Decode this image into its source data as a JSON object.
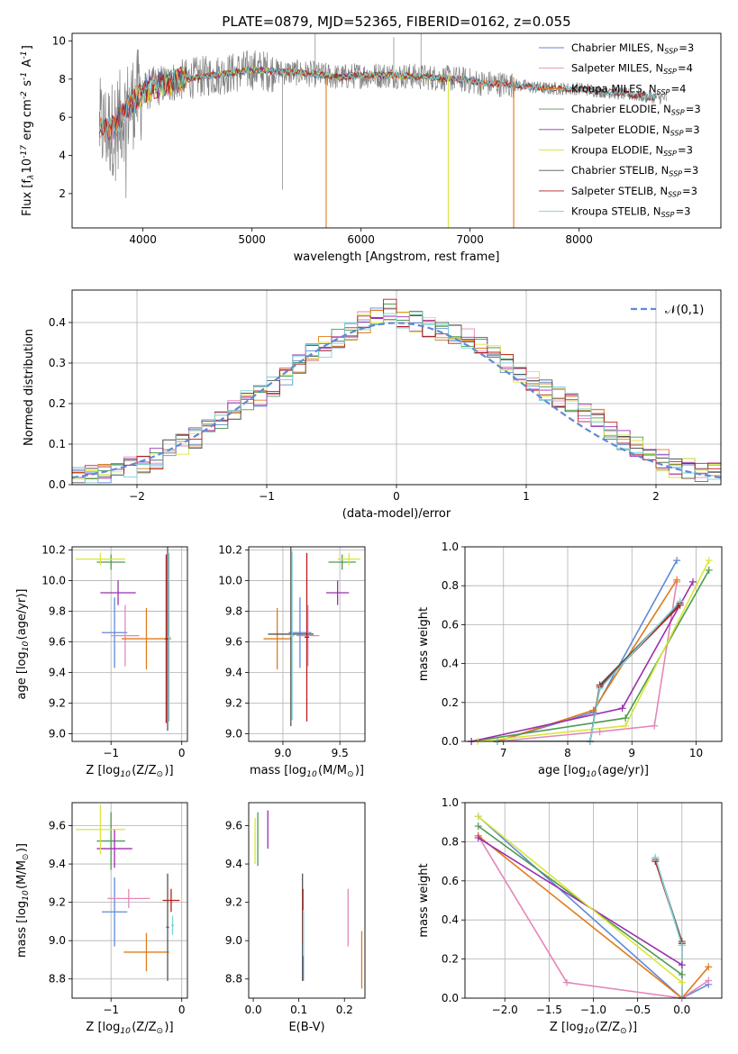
{
  "figure": {
    "title": "PLATE=0879, MJD=52365, FIBERID=0162, z=0.055"
  },
  "colors": {
    "Chabrier MILES": "#5f8ad8",
    "Salpeter MILES": "#e387b9",
    "Kroupa MILES": "#e07b1b",
    "Chabrier ELODIE": "#4e9a4e",
    "Salpeter ELODIE": "#9b2fae",
    "Kroupa ELODIE": "#d9e63b",
    "Chabrier STELIB": "#555555",
    "Salpeter STELIB": "#b71c1c",
    "Kroupa STELIB": "#7ad3d6",
    "data_spectrum": "#808080",
    "normal_curve": "#5f8ad8"
  },
  "chart_data": [
    {
      "id": "spectrum",
      "type": "line",
      "title": "PLATE=0879, MJD=52365, FIBERID=0162, z=0.055",
      "xlabel": "wavelength [Angstrom, rest frame]",
      "ylabel": "Flux [f$_\\lambda$10$^{-17}$ erg cm$^{-2}$ s$^{-1}$ A$^{-1}$]",
      "xlim": [
        3350,
        9300
      ],
      "ylim": [
        0.2,
        10.4
      ],
      "xticks": [
        "4000",
        "5000",
        "6000",
        "7000",
        "8000"
      ],
      "yticks": [
        "2",
        "4",
        "6",
        "8",
        "10"
      ],
      "legend_position": "upper-right",
      "legend": [
        "Chabrier MILES, N$_{SSP}$=3",
        "Salpeter MILES, N$_{SSP}$=4",
        "Kroupa MILES, N$_{SSP}$=4",
        "Chabrier ELODIE, N$_{SSP}$=3",
        "Salpeter ELODIE, N$_{SSP}$=3",
        "Kroupa ELODIE, N$_{SSP}$=3",
        "Chabrier STELIB, N$_{SSP}$=3",
        "Salpeter STELIB, N$_{SSP}$=3",
        "Kroupa STELIB, N$_{SSP}$=3"
      ],
      "model_continuum": {
        "x": [
          3600,
          3700,
          3800,
          3900,
          4000,
          4100,
          4300,
          4500,
          4800,
          5000,
          5200,
          5500,
          5800,
          6000,
          6300,
          6600,
          6900,
          7100,
          7400,
          7700,
          8000,
          8300,
          8600,
          8800
        ],
        "y": [
          5.5,
          5.3,
          6.0,
          6.8,
          7.3,
          7.6,
          7.9,
          8.1,
          8.3,
          8.5,
          8.4,
          8.3,
          8.1,
          8.2,
          8.2,
          8.1,
          8.0,
          7.8,
          7.7,
          7.5,
          7.5,
          7.3,
          7.1,
          7.0
        ]
      }
    },
    {
      "id": "residuals",
      "type": "histogram",
      "xlabel": "(data-model)/error",
      "ylabel": "Normed distribution",
      "xlim": [
        -2.5,
        2.5
      ],
      "ylim": [
        0.0,
        0.48
      ],
      "xticks": [
        "−2",
        "−1",
        "0",
        "1",
        "2"
      ],
      "yticks": [
        "0.0",
        "0.1",
        "0.2",
        "0.3",
        "0.4"
      ],
      "grid": true,
      "legend_position": "upper-right",
      "legend": [
        "$\\mathcal{N}(0,1)$"
      ],
      "bin_edges": [
        -2.5,
        -2.4,
        -2.3,
        -2.2,
        -2.1,
        -2.0,
        -1.9,
        -1.8,
        -1.7,
        -1.6,
        -1.5,
        -1.4,
        -1.3,
        -1.2,
        -1.1,
        -1.0,
        -0.9,
        -0.8,
        -0.7,
        -0.6,
        -0.5,
        -0.4,
        -0.3,
        -0.2,
        -0.1,
        0.0,
        0.1,
        0.2,
        0.3,
        0.4,
        0.5,
        0.6,
        0.7,
        0.8,
        0.9,
        1.0,
        1.1,
        1.2,
        1.3,
        1.4,
        1.5,
        1.6,
        1.7,
        1.8,
        1.9,
        2.0,
        2.1,
        2.2,
        2.3,
        2.4,
        2.5
      ],
      "mean_heights": [
        0.02,
        0.025,
        0.03,
        0.035,
        0.045,
        0.055,
        0.065,
        0.085,
        0.1,
        0.115,
        0.14,
        0.165,
        0.185,
        0.205,
        0.22,
        0.245,
        0.27,
        0.3,
        0.32,
        0.34,
        0.36,
        0.38,
        0.4,
        0.41,
        0.43,
        0.41,
        0.4,
        0.39,
        0.38,
        0.37,
        0.36,
        0.34,
        0.32,
        0.3,
        0.28,
        0.26,
        0.235,
        0.215,
        0.2,
        0.175,
        0.16,
        0.135,
        0.11,
        0.09,
        0.075,
        0.06,
        0.045,
        0.04,
        0.035,
        0.03
      ],
      "series": [
        {
          "name": "Chabrier MILES"
        },
        {
          "name": "Salpeter MILES"
        },
        {
          "name": "Kroupa MILES"
        },
        {
          "name": "Chabrier ELODIE"
        },
        {
          "name": "Salpeter ELODIE"
        },
        {
          "name": "Kroupa ELODIE"
        },
        {
          "name": "Chabrier STELIB"
        },
        {
          "name": "Salpeter STELIB"
        },
        {
          "name": "Kroupa STELIB"
        }
      ]
    },
    {
      "id": "z_age",
      "type": "errorbar",
      "xlabel": "Z [log$_{10}$(Z/Z$_\\odot$)]",
      "ylabel": "age  [log$_{10}$(age/yr)]",
      "xlim": [
        -1.55,
        0.08
      ],
      "ylim": [
        8.95,
        10.22
      ],
      "xticks": [
        "−1",
        "0"
      ],
      "yticks": [
        "9.0",
        "9.2",
        "9.4",
        "9.6",
        "9.8",
        "10.0",
        "10.2"
      ],
      "grid": true,
      "points": [
        {
          "series": "Chabrier MILES",
          "x": -0.95,
          "y": 9.66,
          "xerr": 0.18,
          "yerr": 0.23
        },
        {
          "series": "Salpeter MILES",
          "x": -0.8,
          "y": 9.64,
          "xerr": 0.2,
          "yerr": 0.2
        },
        {
          "series": "Kroupa MILES",
          "x": -0.5,
          "y": 9.62,
          "xerr": 0.35,
          "yerr": 0.2
        },
        {
          "series": "Chabrier ELODIE",
          "x": -1.0,
          "y": 10.12,
          "xerr": 0.2,
          "yerr": 0.05
        },
        {
          "series": "Salpeter ELODIE",
          "x": -0.9,
          "y": 9.92,
          "xerr": 0.25,
          "yerr": 0.08
        },
        {
          "series": "Kroupa ELODIE",
          "x": -1.15,
          "y": 10.14,
          "xerr": 0.35,
          "yerr": 0.04
        },
        {
          "series": "Chabrier STELIB",
          "x": -0.2,
          "y": 9.62,
          "xerr": 0.02,
          "yerr": 0.6
        },
        {
          "series": "Salpeter STELIB",
          "x": -0.22,
          "y": 9.62,
          "xerr": 0.02,
          "yerr": 0.55
        },
        {
          "series": "Kroupa STELIB",
          "x": -0.18,
          "y": 9.63,
          "xerr": 0.02,
          "yerr": 0.55
        }
      ]
    },
    {
      "id": "mass_age",
      "type": "errorbar",
      "xlabel": "mass [log$_{10}$(M/M$_\\odot$)]",
      "ylabel": "",
      "xlim": [
        8.7,
        9.72
      ],
      "ylim": [
        8.95,
        10.22
      ],
      "xticks": [
        "9.0",
        "9.5"
      ],
      "yticks": [
        "9.0",
        "9.2",
        "9.4",
        "9.6",
        "9.8",
        "10.0",
        "10.2"
      ],
      "grid": true,
      "points": [
        {
          "series": "Chabrier MILES",
          "x": 9.15,
          "y": 9.66,
          "xerr": 0.1,
          "yerr": 0.23
        },
        {
          "series": "Salpeter MILES",
          "x": 9.22,
          "y": 9.64,
          "xerr": 0.1,
          "yerr": 0.2
        },
        {
          "series": "Kroupa MILES",
          "x": 8.95,
          "y": 9.62,
          "xerr": 0.12,
          "yerr": 0.2
        },
        {
          "series": "Chabrier ELODIE",
          "x": 9.52,
          "y": 10.12,
          "xerr": 0.12,
          "yerr": 0.05
        },
        {
          "series": "Salpeter ELODIE",
          "x": 9.48,
          "y": 9.92,
          "xerr": 0.1,
          "yerr": 0.08
        },
        {
          "series": "Kroupa ELODIE",
          "x": 9.58,
          "y": 10.14,
          "xerr": 0.1,
          "yerr": 0.04
        },
        {
          "series": "Chabrier STELIB",
          "x": 9.07,
          "y": 9.65,
          "xerr": 0.2,
          "yerr": 0.6
        },
        {
          "series": "Salpeter STELIB",
          "x": 9.21,
          "y": 9.63,
          "xerr": 0.02,
          "yerr": 0.55
        },
        {
          "series": "Kroupa STELIB",
          "x": 9.08,
          "y": 9.64,
          "xerr": 0.02,
          "yerr": 0.55
        }
      ]
    },
    {
      "id": "age_weight",
      "type": "line",
      "xlabel": "age  [log$_{10}$(age/yr)]",
      "ylabel": "mass weight",
      "xlim": [
        6.4,
        10.4
      ],
      "ylim": [
        0.0,
        1.0
      ],
      "xticks": [
        "7",
        "8",
        "9",
        "10"
      ],
      "yticks": [
        "0.0",
        "0.2",
        "0.4",
        "0.6",
        "0.8",
        "1.0"
      ],
      "grid": true,
      "series": [
        {
          "name": "Chabrier MILES",
          "x": [
            6.9,
            8.4,
            9.7
          ],
          "y": [
            0.0,
            0.15,
            0.93
          ]
        },
        {
          "name": "Salpeter MILES",
          "x": [
            6.9,
            8.5,
            9.35,
            9.7
          ],
          "y": [
            0.0,
            0.05,
            0.08,
            0.82
          ]
        },
        {
          "name": "Kroupa MILES",
          "x": [
            6.9,
            8.4,
            9.7
          ],
          "y": [
            0.0,
            0.16,
            0.83
          ]
        },
        {
          "name": "Chabrier ELODIE",
          "x": [
            6.5,
            8.9,
            10.2
          ],
          "y": [
            0.0,
            0.12,
            0.88
          ]
        },
        {
          "name": "Salpeter ELODIE",
          "x": [
            6.5,
            8.85,
            9.95
          ],
          "y": [
            0.0,
            0.17,
            0.82
          ]
        },
        {
          "name": "Kroupa ELODIE",
          "x": [
            6.6,
            8.9,
            10.2
          ],
          "y": [
            0.0,
            0.08,
            0.93
          ]
        },
        {
          "name": "Chabrier STELIB",
          "x": [
            6.9,
            8.35,
            8.5,
            9.75
          ],
          "y": [
            0.0,
            0.0,
            0.29,
            0.71
          ]
        },
        {
          "name": "Salpeter STELIB",
          "x": [
            6.9,
            8.35,
            8.5,
            9.75
          ],
          "y": [
            0.0,
            0.0,
            0.28,
            0.7
          ]
        },
        {
          "name": "Kroupa STELIB",
          "x": [
            6.9,
            8.35,
            8.5,
            9.75
          ],
          "y": [
            0.0,
            0.0,
            0.27,
            0.72
          ]
        }
      ]
    },
    {
      "id": "z_mass",
      "type": "errorbar",
      "xlabel": "Z [log$_{10}$(Z/Z$_\\odot$)]",
      "ylabel": "mass [log$_{10}$(M/M$_\\odot$)]",
      "xlim": [
        -1.55,
        0.08
      ],
      "ylim": [
        8.7,
        9.72
      ],
      "xticks": [
        "−1",
        "0"
      ],
      "yticks": [
        "8.8",
        "9.0",
        "9.2",
        "9.4",
        "9.6"
      ],
      "grid": true,
      "points": [
        {
          "series": "Chabrier MILES",
          "x": -0.95,
          "y": 9.15,
          "xerr": 0.18,
          "yerr": 0.18
        },
        {
          "series": "Salpeter MILES",
          "x": -0.75,
          "y": 9.22,
          "xerr": 0.3,
          "yerr": 0.05
        },
        {
          "series": "Kroupa MILES",
          "x": -0.5,
          "y": 8.94,
          "xerr": 0.32,
          "yerr": 0.1
        },
        {
          "series": "Chabrier ELODIE",
          "x": -1.0,
          "y": 9.52,
          "xerr": 0.2,
          "yerr": 0.15
        },
        {
          "series": "Salpeter ELODIE",
          "x": -0.95,
          "y": 9.48,
          "xerr": 0.25,
          "yerr": 0.1
        },
        {
          "series": "Kroupa ELODIE",
          "x": -1.15,
          "y": 9.58,
          "xerr": 0.35,
          "yerr": 0.13
        },
        {
          "series": "Chabrier STELIB",
          "x": -0.2,
          "y": 9.07,
          "xerr": 0.02,
          "yerr": 0.28
        },
        {
          "series": "Salpeter STELIB",
          "x": -0.15,
          "y": 9.21,
          "xerr": 0.12,
          "yerr": 0.06
        },
        {
          "series": "Kroupa STELIB",
          "x": -0.13,
          "y": 9.08,
          "xerr": 0.02,
          "yerr": 0.05
        }
      ]
    },
    {
      "id": "ebv_mass",
      "type": "errorbar",
      "xlabel": "E(B-V)",
      "ylabel": "",
      "xlim": [
        -0.01,
        0.245
      ],
      "ylim": [
        8.7,
        9.72
      ],
      "xticks": [
        "0.0",
        "0.1",
        "0.2"
      ],
      "yticks": [
        "8.8",
        "9.0",
        "9.2",
        "9.4",
        "9.6"
      ],
      "grid": false,
      "points": [
        {
          "series": "Chabrier MILES",
          "x": 0.11,
          "y": 8.97,
          "xerr": 0.0,
          "yerr": 0.18
        },
        {
          "series": "Salpeter MILES",
          "x": 0.208,
          "y": 9.12,
          "xerr": 0.0,
          "yerr": 0.15
        },
        {
          "series": "Kroupa MILES",
          "x": 0.238,
          "y": 8.9,
          "xerr": 0.0,
          "yerr": 0.15
        },
        {
          "series": "Chabrier ELODIE",
          "x": 0.01,
          "y": 9.53,
          "xerr": 0.0,
          "yerr": 0.14
        },
        {
          "series": "Salpeter ELODIE",
          "x": 0.032,
          "y": 9.58,
          "xerr": 0.0,
          "yerr": 0.1
        },
        {
          "series": "Kroupa ELODIE",
          "x": 0.004,
          "y": 9.52,
          "xerr": 0.0,
          "yerr": 0.12
        },
        {
          "series": "Chabrier STELIB",
          "x": 0.108,
          "y": 9.07,
          "xerr": 0.0,
          "yerr": 0.28
        },
        {
          "series": "Salpeter STELIB",
          "x": 0.109,
          "y": 9.13,
          "xerr": 0.0,
          "yerr": 0.14
        },
        {
          "series": "Kroupa STELIB",
          "x": 0.11,
          "y": 9.04,
          "xerr": 0.0,
          "yerr": 0.12
        }
      ]
    },
    {
      "id": "z_weight",
      "type": "line",
      "xlabel": "Z [log$_{10}$(Z/Z$_\\odot$)]",
      "ylabel": "mass weight",
      "xlim": [
        -2.45,
        0.45
      ],
      "ylim": [
        0.0,
        1.0
      ],
      "xticks": [
        "−2.0",
        "−1.5",
        "−1.0",
        "−0.5",
        "0.0"
      ],
      "yticks": [
        "0.0",
        "0.2",
        "0.4",
        "0.6",
        "0.8",
        "1.0"
      ],
      "grid": true,
      "series": [
        {
          "name": "Chabrier MILES",
          "x": [
            -2.3,
            0.0,
            0.3
          ],
          "y": [
            0.93,
            0.0,
            0.07
          ]
        },
        {
          "name": "Salpeter MILES",
          "x": [
            -2.3,
            -1.3,
            0.0,
            0.3
          ],
          "y": [
            0.83,
            0.08,
            0.0,
            0.09
          ]
        },
        {
          "name": "Kroupa MILES",
          "x": [
            -2.3,
            0.0,
            0.3
          ],
          "y": [
            0.83,
            0.0,
            0.16
          ]
        },
        {
          "name": "Chabrier ELODIE",
          "x": [
            -2.3,
            0.0
          ],
          "y": [
            0.88,
            0.12
          ]
        },
        {
          "name": "Salpeter ELODIE",
          "x": [
            -2.3,
            0.0
          ],
          "y": [
            0.82,
            0.17
          ]
        },
        {
          "name": "Kroupa ELODIE",
          "x": [
            -2.3,
            0.0
          ],
          "y": [
            0.93,
            0.08
          ]
        },
        {
          "name": "Chabrier STELIB",
          "x": [
            -0.3,
            0.0,
            0.0
          ],
          "y": [
            0.71,
            0.29,
            0.0
          ]
        },
        {
          "name": "Salpeter STELIB",
          "x": [
            -0.3,
            0.0,
            0.0
          ],
          "y": [
            0.7,
            0.28,
            0.0
          ]
        },
        {
          "name": "Kroupa STELIB",
          "x": [
            -0.3,
            0.0,
            0.0
          ],
          "y": [
            0.72,
            0.27,
            0.0
          ]
        }
      ]
    }
  ]
}
